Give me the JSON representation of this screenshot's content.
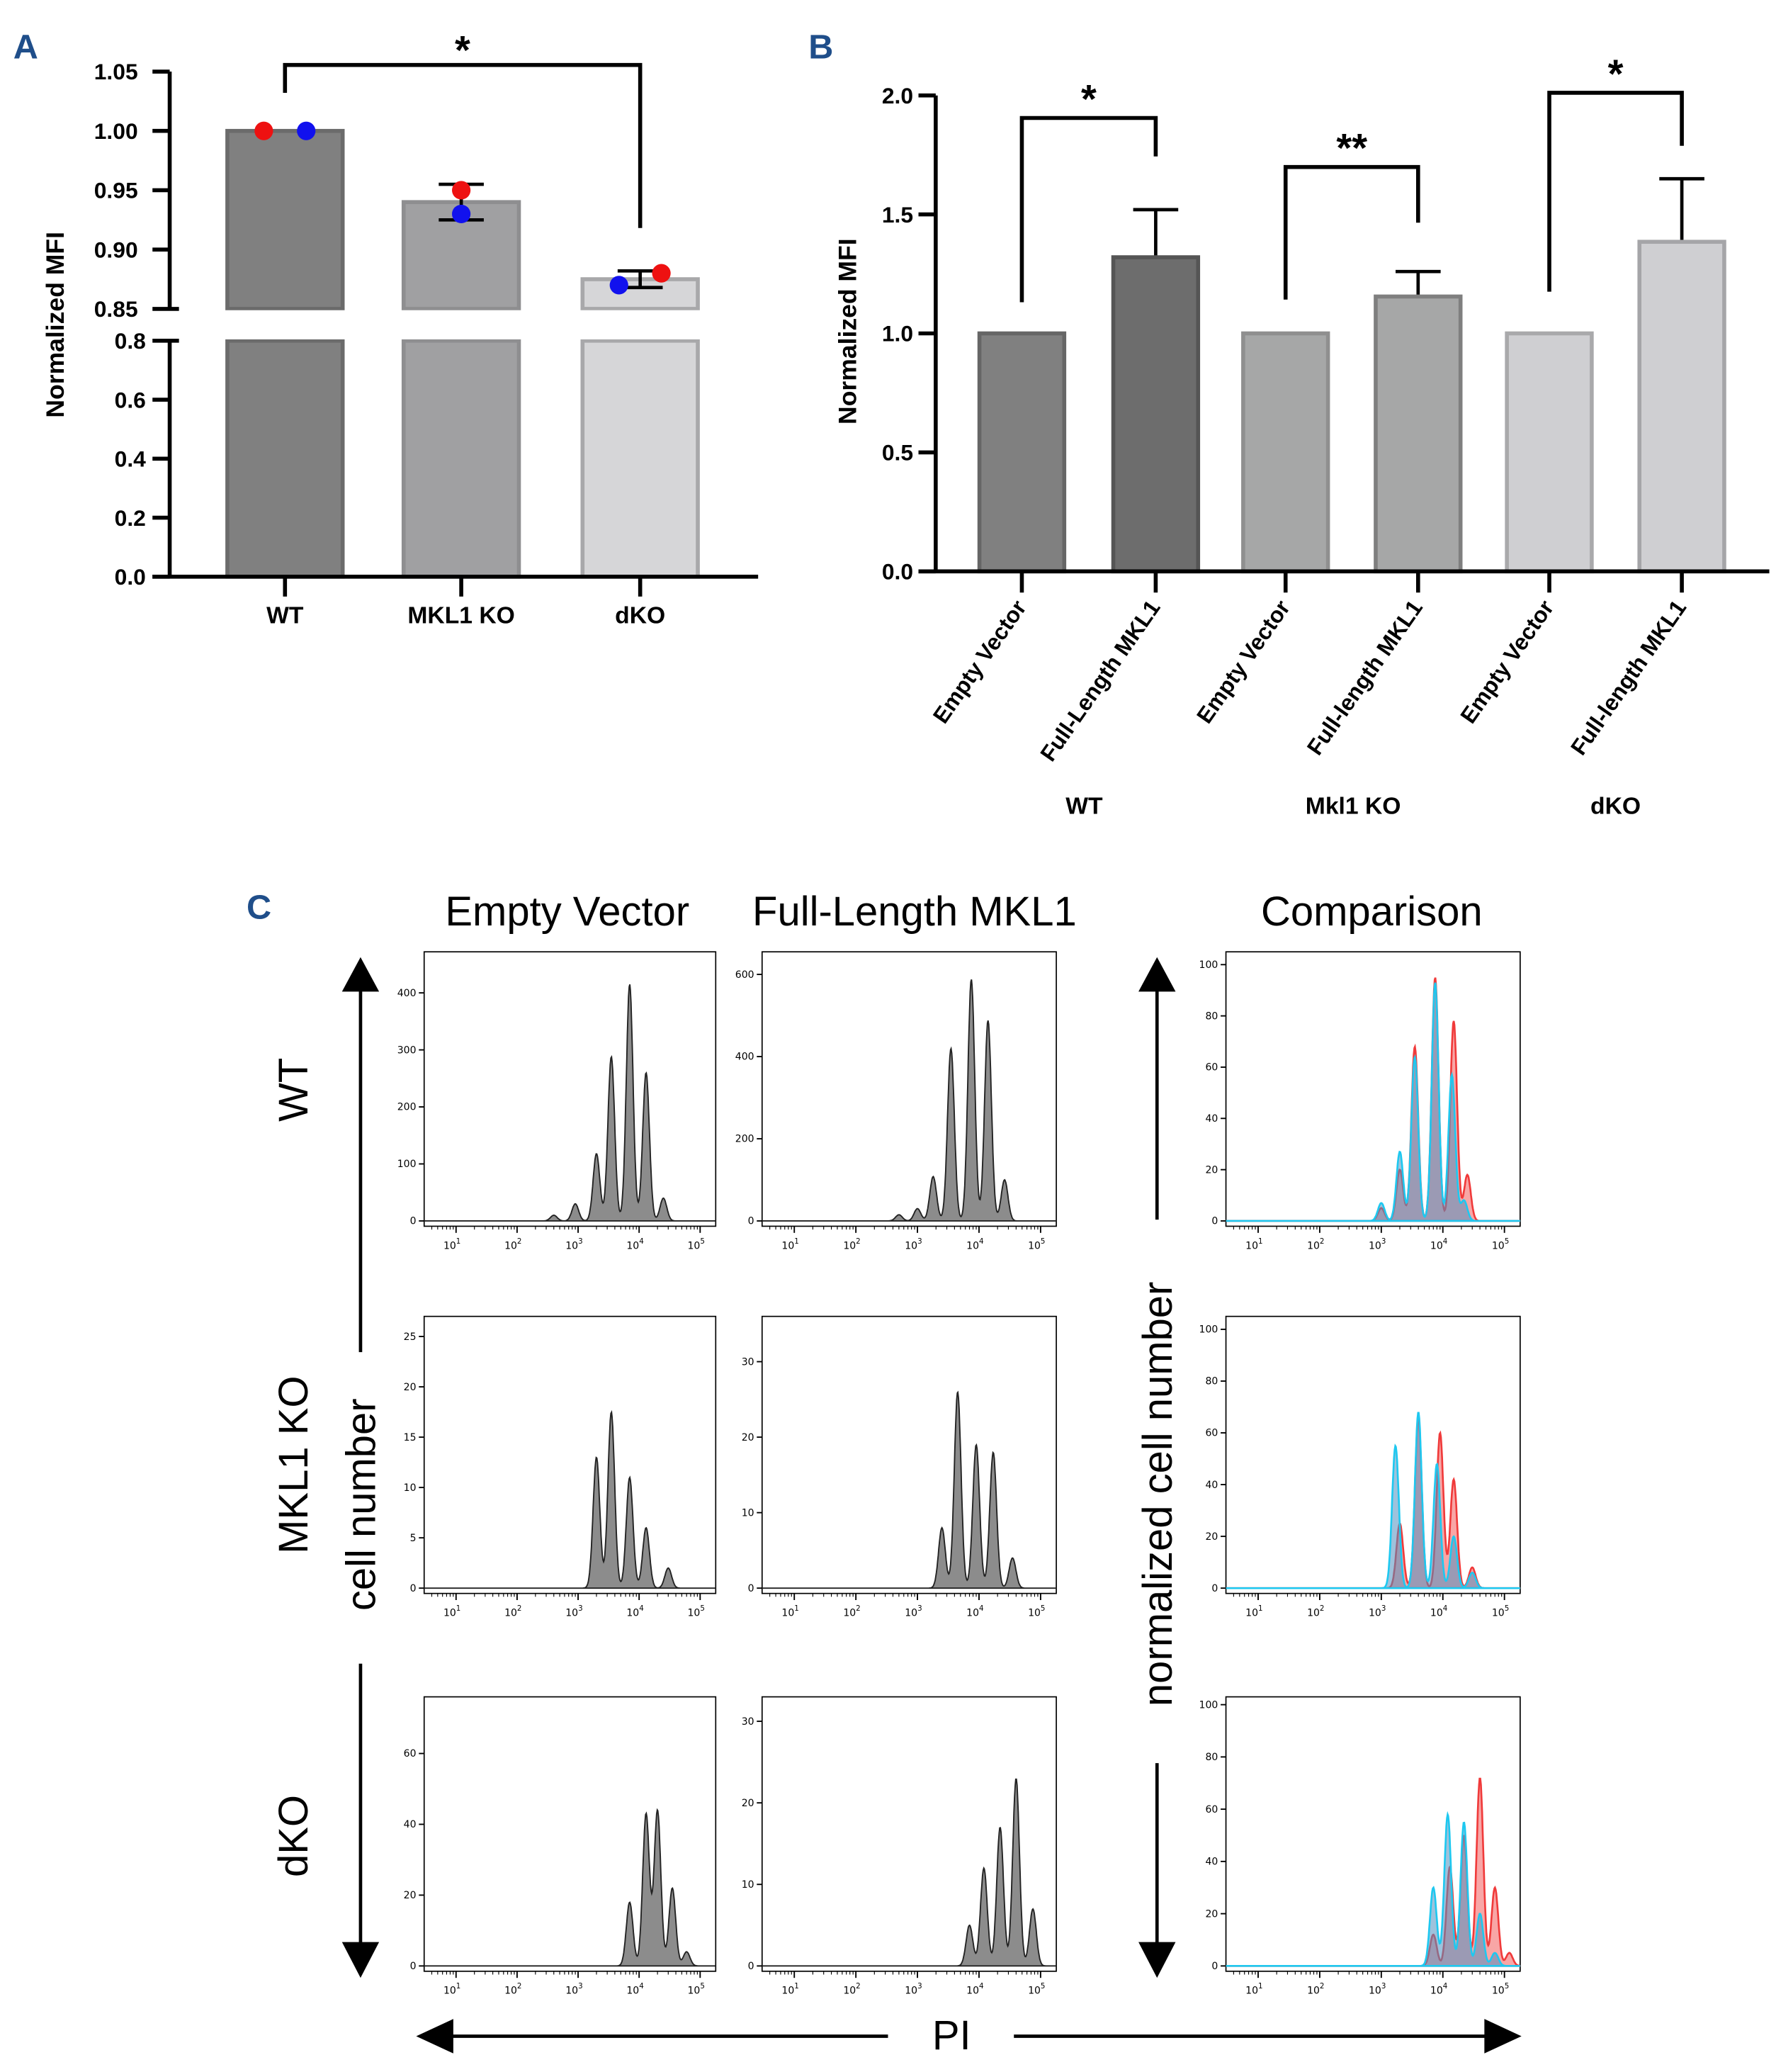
{
  "panel_labels": {
    "a": "A",
    "b": "B",
    "c": "C"
  },
  "chart_data": [
    {
      "panel": "A",
      "type": "bar",
      "ylabel": "Normalized MFI",
      "categories": [
        "WT",
        "MKL1 KO",
        "dKO"
      ],
      "values": [
        1.0,
        0.94,
        0.875
      ],
      "error_low": [
        1.0,
        0.925,
        0.868
      ],
      "error_high": [
        1.0,
        0.955,
        0.882
      ],
      "points": [
        {
          "category": "WT",
          "red": 1.0,
          "blue": 1.0
        },
        {
          "category": "MKL1 KO",
          "red": 0.95,
          "blue": 0.93
        },
        {
          "category": "dKO",
          "red": 0.88,
          "blue": 0.87
        }
      ],
      "point_colors": {
        "red": "#ee1111",
        "blue": "#1111ee"
      },
      "y_axis_break": [
        0.8,
        0.85
      ],
      "y_ticks_lower": [
        "0.0",
        "0.2",
        "0.4",
        "0.6",
        "0.8"
      ],
      "y_ticks_upper": [
        "0.85",
        "0.90",
        "0.95",
        "1.00",
        "1.05"
      ],
      "ylim": [
        0,
        1.05
      ],
      "bar_colors": [
        "#808080",
        "#a0a0a2",
        "#d6d6d8"
      ],
      "significance": [
        {
          "from": "WT",
          "to": "dKO",
          "label": "*"
        }
      ]
    },
    {
      "panel": "B",
      "type": "bar",
      "ylabel": "Normalized MFI",
      "categories": [
        "Empty Vector",
        "Full-Length MKL1",
        "Empty Vector",
        "Full-length MKL1",
        "Empty Vector",
        "Full-length MKL1"
      ],
      "groups": [
        "WT",
        "Mkl1 KO",
        "dKO"
      ],
      "values": [
        1.0,
        1.32,
        1.0,
        1.155,
        1.0,
        1.385
      ],
      "error_high": [
        null,
        1.52,
        null,
        1.26,
        null,
        1.65
      ],
      "ylim": [
        0,
        2.0
      ],
      "y_ticks": [
        "0.0",
        "0.5",
        "1.0",
        "1.5",
        "2.0"
      ],
      "bar_colors": [
        "#808080",
        "#6d6d6d",
        "#a6a7a7",
        "#a6a7a7",
        "#cfcfd2",
        "#cfcfd2"
      ],
      "significance": [
        {
          "group": "WT",
          "label": "*"
        },
        {
          "group": "Mkl1 KO",
          "label": "**"
        },
        {
          "group": "dKO",
          "label": "*"
        }
      ]
    },
    {
      "panel": "C",
      "type": "area",
      "title_columns": [
        "Empty Vector",
        "Full-Length MKL1",
        "Comparison"
      ],
      "row_labels": [
        "WT",
        "MKL1 KO",
        "dKO"
      ],
      "ylabel_left": "cell number",
      "ylabel_right": "normalized cell number",
      "xlabel": "PI",
      "x_scale": "log",
      "xlim": [
        3,
        180000
      ],
      "x_ticks": [
        10,
        100,
        1000,
        10000,
        100000
      ],
      "colors": {
        "single": "#8c8c8c",
        "red": "#f03a3a",
        "blue": "#1ec8f0"
      },
      "histograms": [
        {
          "row": "WT",
          "column": "Empty Vector",
          "ylim": [
            0,
            472
          ],
          "y_ticks": [
            0,
            100,
            200,
            300,
            400
          ],
          "peaks": [
            [
              400,
              10
            ],
            [
              900,
              30
            ],
            [
              2000,
              118
            ],
            [
              3500,
              288
            ],
            [
              7000,
              415
            ],
            [
              13000,
              260
            ],
            [
              25000,
              40
            ]
          ]
        },
        {
          "row": "WT",
          "column": "Full-Length MKL1",
          "ylim": [
            0,
            655
          ],
          "y_ticks": [
            0,
            200,
            400,
            600
          ],
          "peaks": [
            [
              500,
              15
            ],
            [
              1000,
              30
            ],
            [
              1800,
              108
            ],
            [
              3500,
              420
            ],
            [
              7500,
              588
            ],
            [
              14000,
              488
            ],
            [
              26000,
              100
            ]
          ]
        },
        {
          "row": "WT",
          "column": "Comparison",
          "ylim": [
            0,
            105
          ],
          "y_ticks": [
            0,
            20,
            40,
            60,
            80,
            100
          ],
          "red": [
            [
              1000,
              5
            ],
            [
              2000,
              20
            ],
            [
              3500,
              68
            ],
            [
              7500,
              95
            ],
            [
              15000,
              78
            ],
            [
              25000,
              18
            ]
          ],
          "blue": [
            [
              1000,
              7
            ],
            [
              2000,
              27
            ],
            [
              3500,
              64
            ],
            [
              7500,
              93
            ],
            [
              14000,
              57
            ],
            [
              22000,
              8
            ]
          ]
        },
        {
          "row": "MKL1 KO",
          "column": "Empty Vector",
          "ylim": [
            0,
            27
          ],
          "y_ticks": [
            0,
            5,
            10,
            15,
            20,
            25
          ],
          "peaks": [
            [
              2000,
              13
            ],
            [
              3500,
              17.5
            ],
            [
              7000,
              11
            ],
            [
              13000,
              6
            ],
            [
              30000,
              2
            ]
          ]
        },
        {
          "row": "MKL1 KO",
          "column": "Full-Length MKL1",
          "ylim": [
            0,
            36
          ],
          "y_ticks": [
            0,
            10,
            20,
            30
          ],
          "peaks": [
            [
              2500,
              8
            ],
            [
              4500,
              26
            ],
            [
              9000,
              19
            ],
            [
              17000,
              18
            ],
            [
              35000,
              4
            ]
          ]
        },
        {
          "row": "MKL1 KO",
          "column": "Comparison",
          "ylim": [
            0,
            105
          ],
          "y_ticks": [
            0,
            20,
            40,
            60,
            80,
            100
          ],
          "red": [
            [
              2000,
              25
            ],
            [
              4000,
              66
            ],
            [
              9000,
              60
            ],
            [
              15000,
              42
            ],
            [
              30000,
              8
            ]
          ],
          "blue": [
            [
              1700,
              55
            ],
            [
              4000,
              68
            ],
            [
              8000,
              48
            ],
            [
              15000,
              20
            ],
            [
              30000,
              6
            ]
          ]
        },
        {
          "row": "dKO",
          "column": "Empty Vector",
          "ylim": [
            0,
            76
          ],
          "y_ticks": [
            0,
            20,
            40,
            60
          ],
          "peaks": [
            [
              7000,
              18
            ],
            [
              13000,
              43
            ],
            [
              20000,
              44
            ],
            [
              35000,
              22
            ],
            [
              60000,
              4
            ]
          ]
        },
        {
          "row": "dKO",
          "column": "Full-Length MKL1",
          "ylim": [
            0,
            33
          ],
          "y_ticks": [
            0,
            10,
            20,
            30
          ],
          "peaks": [
            [
              7000,
              5
            ],
            [
              12000,
              12
            ],
            [
              22000,
              17
            ],
            [
              40000,
              23
            ],
            [
              75000,
              7
            ]
          ]
        },
        {
          "row": "dKO",
          "column": "Comparison",
          "ylim": [
            0,
            103
          ],
          "y_ticks": [
            0,
            20,
            40,
            60,
            80,
            100
          ],
          "red": [
            [
              7000,
              12
            ],
            [
              13000,
              38
            ],
            [
              22000,
              50
            ],
            [
              40000,
              72
            ],
            [
              70000,
              30
            ],
            [
              120000,
              5
            ]
          ],
          "blue": [
            [
              7000,
              30
            ],
            [
              12000,
              58
            ],
            [
              22000,
              55
            ],
            [
              40000,
              20
            ],
            [
              70000,
              5
            ]
          ]
        }
      ]
    }
  ]
}
